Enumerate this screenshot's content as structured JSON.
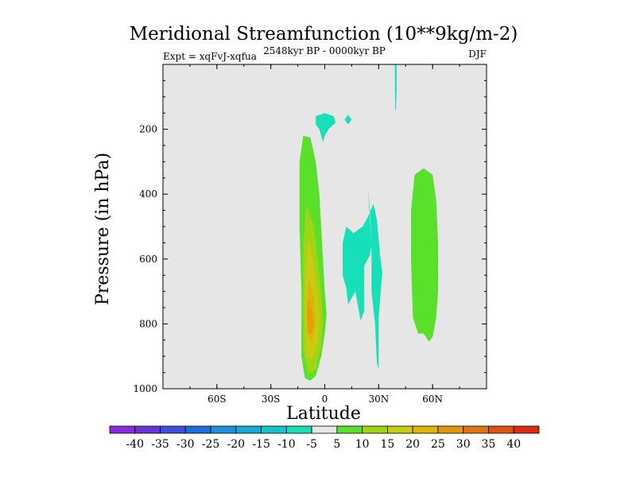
{
  "chart_data": {
    "type": "contour",
    "title": "Meridional Streamfunction (10**9kg/m-2)",
    "left_subtitle": "Expt = xqFvJ-xqfua",
    "center_subtitle": "2548kyr BP - 0000kyr BP",
    "right_subtitle": "DJF",
    "xlabel": "Latitude",
    "ylabel": "Pressure (in hPa)",
    "xlim": [
      -90,
      90
    ],
    "ylim": [
      0,
      1000
    ],
    "y_inverted": true,
    "x_ticks": [
      {
        "value": -60,
        "label": "60S"
      },
      {
        "value": -30,
        "label": "30S"
      },
      {
        "value": 0,
        "label": "0"
      },
      {
        "value": 30,
        "label": "30N"
      },
      {
        "value": 60,
        "label": "60N"
      }
    ],
    "y_ticks": [
      {
        "value": 200,
        "label": "200"
      },
      {
        "value": 400,
        "label": "400"
      },
      {
        "value": 600,
        "label": "600"
      },
      {
        "value": 800,
        "label": "800"
      },
      {
        "value": 1000,
        "label": "1000"
      }
    ],
    "background_color": "#e6e6e6",
    "colorbar": {
      "labels": [
        "-40",
        "-35",
        "-30",
        "-25",
        "-20",
        "-15",
        "-10",
        "-5",
        "5",
        "10",
        "15",
        "20",
        "25",
        "30",
        "35",
        "40"
      ],
      "colors": [
        "#8a2be2",
        "#6a33d6",
        "#3d4fe0",
        "#1e6ed8",
        "#1d8fdc",
        "#16a8d8",
        "#14c3cc",
        "#17dfb8",
        "#e6e6e6",
        "#58e02a",
        "#9ed514",
        "#c9cc0e",
        "#ddb40b",
        "#e0960b",
        "#e07410",
        "#e05210",
        "#e02a10"
      ]
    },
    "regions": [
      {
        "name": "positive-sh-cell-outer",
        "level": 5,
        "color": "#58e02a",
        "points": [
          [
            -12,
            220
          ],
          [
            -8,
            225
          ],
          [
            -5,
            300
          ],
          [
            -3,
            400
          ],
          [
            -2,
            500
          ],
          [
            -1,
            600
          ],
          [
            0,
            700
          ],
          [
            1,
            770
          ],
          [
            0,
            830
          ],
          [
            -2,
            900
          ],
          [
            -5,
            960
          ],
          [
            -8,
            975
          ],
          [
            -11,
            968
          ],
          [
            -13,
            900
          ],
          [
            -13,
            700
          ],
          [
            -14,
            500
          ],
          [
            -14,
            300
          ]
        ]
      },
      {
        "name": "positive-sh-cell-10",
        "level": 10,
        "color": "#9ed514",
        "points": [
          [
            -10,
            430
          ],
          [
            -6,
            500
          ],
          [
            -4,
            600
          ],
          [
            -2,
            700
          ],
          [
            -1,
            790
          ],
          [
            -2,
            870
          ],
          [
            -5,
            940
          ],
          [
            -9,
            955
          ],
          [
            -12,
            880
          ],
          [
            -12,
            700
          ],
          [
            -12,
            550
          ]
        ]
      },
      {
        "name": "positive-sh-cell-15",
        "level": 15,
        "color": "#c9cc0e",
        "points": [
          [
            -9,
            540
          ],
          [
            -6,
            610
          ],
          [
            -4,
            700
          ],
          [
            -3,
            790
          ],
          [
            -4,
            860
          ],
          [
            -7,
            910
          ],
          [
            -10,
            900
          ],
          [
            -11,
            780
          ],
          [
            -11,
            650
          ]
        ]
      },
      {
        "name": "positive-sh-cell-20",
        "level": 20,
        "color": "#ddb40b",
        "points": [
          [
            -9,
            660
          ],
          [
            -6,
            720
          ],
          [
            -5,
            790
          ],
          [
            -6,
            840
          ],
          [
            -8,
            855
          ],
          [
            -10,
            820
          ],
          [
            -10,
            720
          ]
        ]
      },
      {
        "name": "positive-sh-cell-25",
        "level": 25,
        "color": "#e0a20b",
        "points": [
          [
            -9,
            720
          ],
          [
            -7,
            760
          ],
          [
            -6,
            800
          ],
          [
            -7,
            830
          ],
          [
            -9,
            830
          ],
          [
            -10,
            780
          ]
        ]
      },
      {
        "name": "positive-nh-cell",
        "level": 5,
        "color": "#58e02a",
        "points": [
          [
            50,
            340
          ],
          [
            55,
            320
          ],
          [
            60,
            340
          ],
          [
            62,
            420
          ],
          [
            63,
            550
          ],
          [
            63,
            700
          ],
          [
            62,
            780
          ],
          [
            60,
            840
          ],
          [
            58,
            855
          ],
          [
            55,
            830
          ],
          [
            52,
            830
          ],
          [
            49,
            780
          ],
          [
            48,
            600
          ],
          [
            48,
            450
          ]
        ]
      },
      {
        "name": "negative-upper-cell",
        "level": -5,
        "color": "#17dfb8",
        "points": [
          [
            -5,
            160
          ],
          [
            0,
            150
          ],
          [
            5,
            160
          ],
          [
            6,
            180
          ],
          [
            2,
            200
          ],
          [
            0,
            220
          ],
          [
            -1,
            240
          ],
          [
            -3,
            200
          ],
          [
            -5,
            185
          ]
        ]
      },
      {
        "name": "negative-small-patch",
        "level": -5,
        "color": "#17dfb8",
        "points": [
          [
            11,
            170
          ],
          [
            13,
            155
          ],
          [
            15,
            170
          ],
          [
            13,
            185
          ]
        ]
      },
      {
        "name": "negative-tropical-cell",
        "level": -5,
        "color": "#17dfb8",
        "points": [
          [
            24,
            380
          ],
          [
            25,
            440
          ],
          [
            26,
            560
          ],
          [
            26,
            700
          ],
          [
            28,
            800
          ],
          [
            29,
            920
          ],
          [
            30,
            940
          ],
          [
            30,
            900
          ],
          [
            30,
            780
          ],
          [
            32,
            640
          ],
          [
            31,
            600
          ],
          [
            29,
            480
          ],
          [
            27,
            430
          ],
          [
            24,
            470
          ],
          [
            21,
            500
          ],
          [
            16,
            520
          ],
          [
            12,
            500
          ],
          [
            10,
            550
          ],
          [
            10,
            650
          ],
          [
            12,
            690
          ],
          [
            13,
            740
          ],
          [
            14,
            730
          ],
          [
            17,
            700
          ],
          [
            20,
            790
          ],
          [
            22,
            760
          ],
          [
            22,
            620
          ],
          [
            25,
            590
          ],
          [
            26,
            560
          ]
        ]
      },
      {
        "name": "negative-nh-filament",
        "level": -5,
        "color": "#17dfb8",
        "points": [
          [
            39,
            0
          ],
          [
            40,
            0
          ],
          [
            40,
            80
          ],
          [
            39.6,
            140
          ],
          [
            39.2,
            140
          ],
          [
            39.1,
            80
          ]
        ]
      }
    ]
  }
}
